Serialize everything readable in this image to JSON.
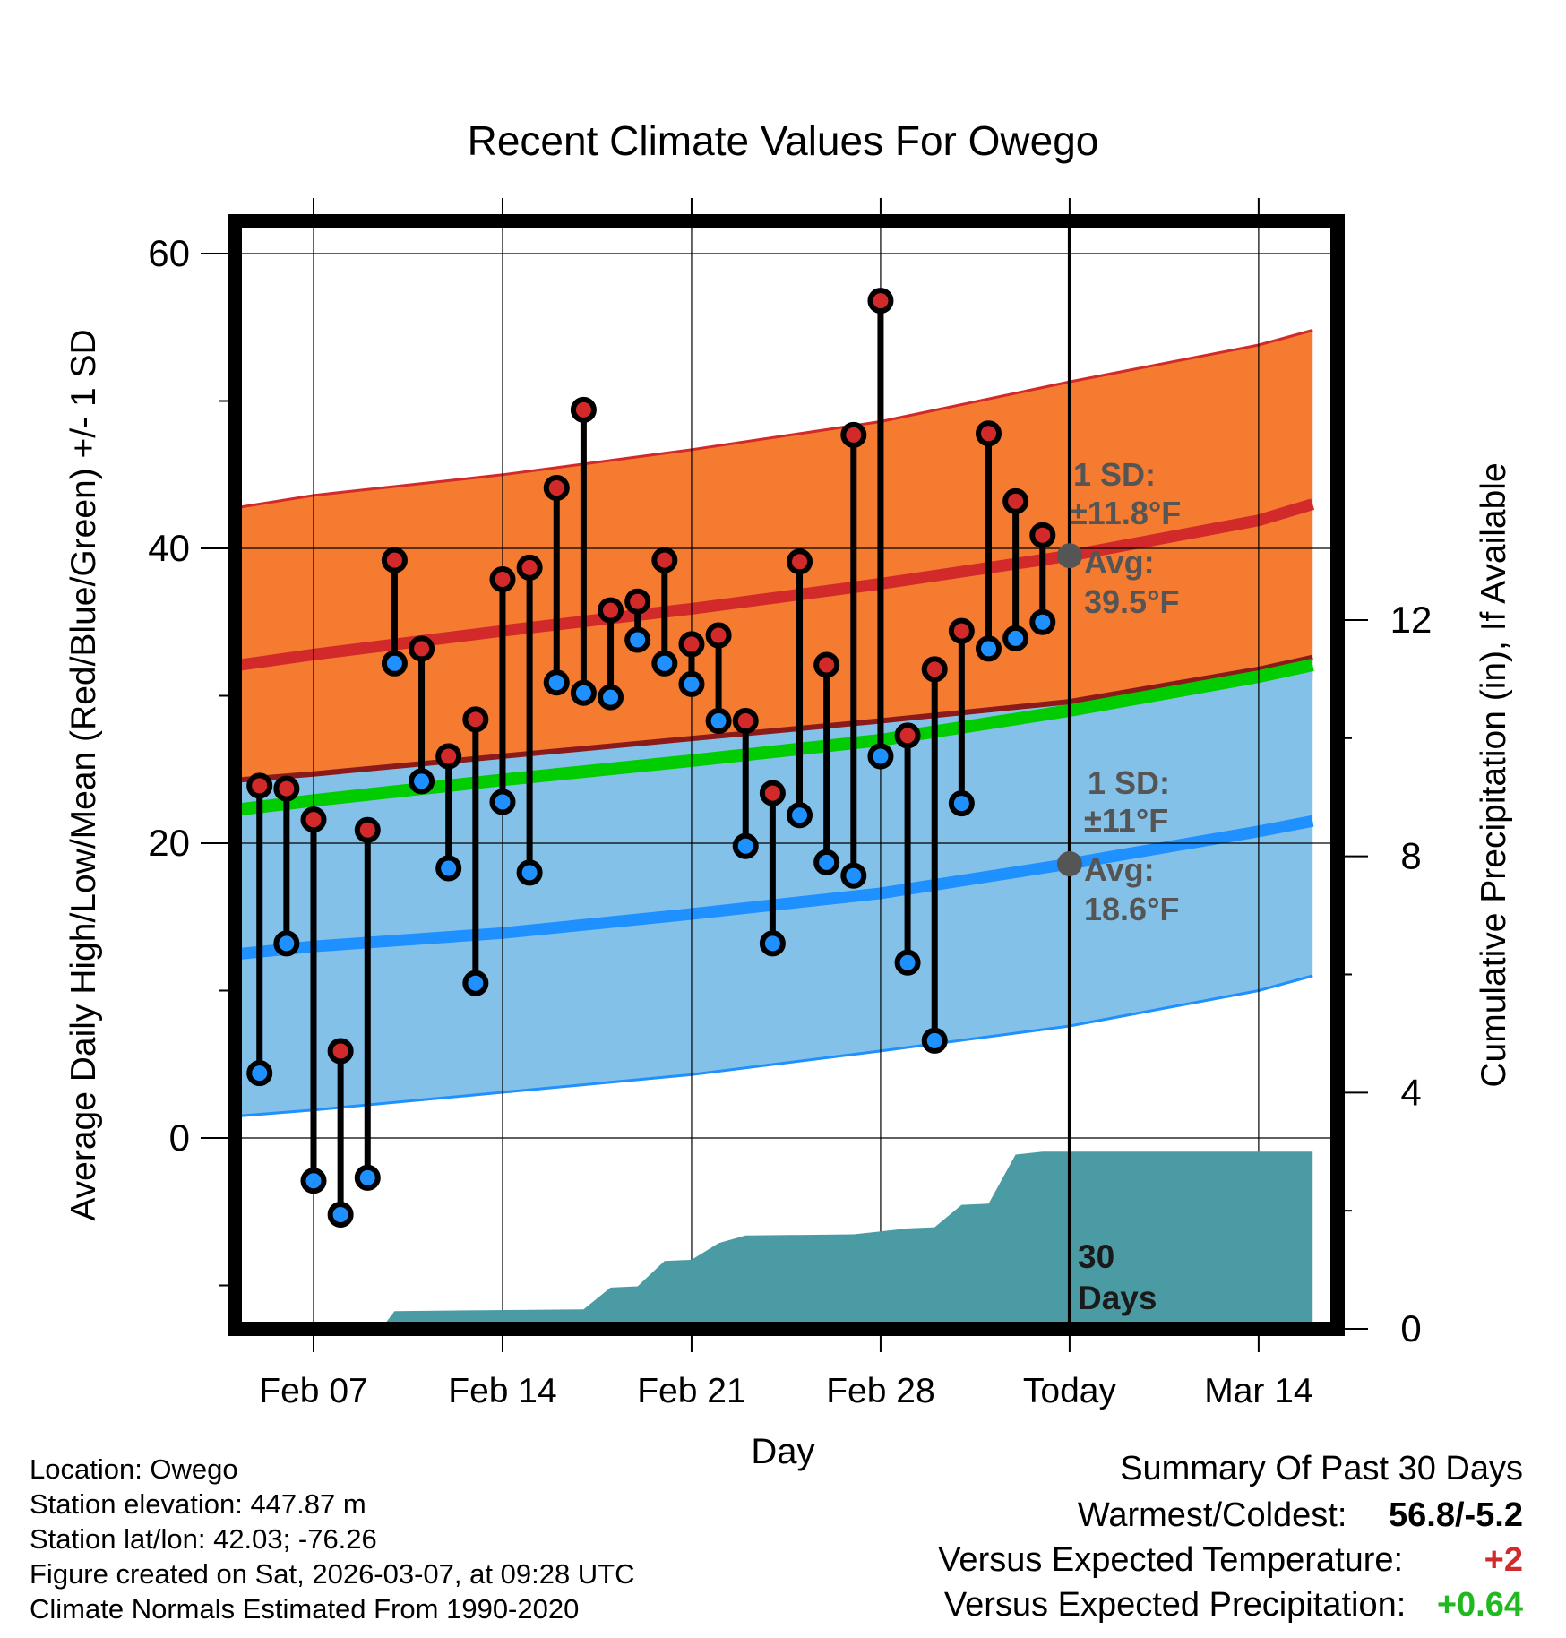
{
  "chart_data": {
    "type": "range-bar",
    "title": "Recent Climate Values For Owego",
    "xlabel": "Day",
    "ylabel": "Average Daily High/Low/Mean (Red/Blue/Green) +/- 1 SD",
    "ylabel_right": "Cumulative Precipitation (in), If Available",
    "x_range": [
      -3.3,
      37.3
    ],
    "ylim": [
      -12.5,
      62.5
    ],
    "y2lim": [
      0,
      18.75
    ],
    "x_ticks": [
      {
        "x": 0,
        "label": "Feb 07"
      },
      {
        "x": 7,
        "label": "Feb 14"
      },
      {
        "x": 14,
        "label": "Feb 21"
      },
      {
        "x": 21,
        "label": "Feb 28"
      },
      {
        "x": 28,
        "label": "Today"
      },
      {
        "x": 35,
        "label": "Mar 14"
      }
    ],
    "y_ticks": [
      0,
      20,
      40,
      60
    ],
    "y2_ticks": [
      0,
      4,
      8,
      12
    ],
    "today_x": 28,
    "normal_high": {
      "x": [
        -2.7,
        0,
        7,
        14,
        21,
        28,
        35,
        37
      ],
      "mean": [
        32.1,
        32.8,
        34.4,
        35.9,
        37.6,
        39.5,
        41.9,
        43.0
      ],
      "upper": [
        42.8,
        43.6,
        45.0,
        46.7,
        48.6,
        51.3,
        53.8,
        54.8
      ],
      "lower": [
        21.5,
        22.0,
        23.8,
        25.1,
        26.6,
        27.7,
        30.0,
        31.2
      ]
    },
    "normal_low": {
      "x": [
        -2.7,
        0,
        7,
        14,
        21,
        28,
        35,
        37
      ],
      "mean": [
        12.5,
        13.0,
        13.9,
        15.2,
        16.6,
        18.6,
        20.8,
        21.5
      ],
      "upper": [
        24.3,
        24.7,
        25.9,
        27.1,
        28.3,
        29.6,
        31.8,
        32.6
      ],
      "lower": [
        1.5,
        1.9,
        3.1,
        4.3,
        5.9,
        7.6,
        10.0,
        11.0
      ]
    },
    "normal_mean": {
      "x": [
        -2.7,
        0,
        7,
        14,
        21,
        28,
        35,
        37
      ],
      "values": [
        22.3,
        22.9,
        24.3,
        25.6,
        27.0,
        29.0,
        31.3,
        32.1
      ]
    },
    "days": [
      {
        "x": -2,
        "high": 23.9,
        "low": 4.4
      },
      {
        "x": -1,
        "high": 23.7,
        "low": 13.2
      },
      {
        "x": 0,
        "high": 21.6,
        "low": -2.9
      },
      {
        "x": 1,
        "high": 5.9,
        "low": -5.2
      },
      {
        "x": 2,
        "high": 20.9,
        "low": -2.7
      },
      {
        "x": 3,
        "high": 39.2,
        "low": 32.2
      },
      {
        "x": 4,
        "high": 33.2,
        "low": 24.2
      },
      {
        "x": 5,
        "high": 25.9,
        "low": 18.3
      },
      {
        "x": 6,
        "high": 28.4,
        "low": 10.5
      },
      {
        "x": 7,
        "high": 37.9,
        "low": 22.8
      },
      {
        "x": 8,
        "high": 38.7,
        "low": 18.0
      },
      {
        "x": 9,
        "high": 44.1,
        "low": 30.9
      },
      {
        "x": 10,
        "high": 49.4,
        "low": 30.2
      },
      {
        "x": 11,
        "high": 35.8,
        "low": 29.9
      },
      {
        "x": 12,
        "high": 36.4,
        "low": 33.8
      },
      {
        "x": 13,
        "high": 39.2,
        "low": 32.2
      },
      {
        "x": 14,
        "high": 33.5,
        "low": 30.8
      },
      {
        "x": 15,
        "high": 34.1,
        "low": 28.3
      },
      {
        "x": 16,
        "high": 28.3,
        "low": 19.8
      },
      {
        "x": 17,
        "high": 23.4,
        "low": 13.2
      },
      {
        "x": 18,
        "high": 39.1,
        "low": 21.9
      },
      {
        "x": 19,
        "high": 32.1,
        "low": 18.7
      },
      {
        "x": 20,
        "high": 47.7,
        "low": 17.8
      },
      {
        "x": 21,
        "high": 56.8,
        "low": 25.9
      },
      {
        "x": 22,
        "high": 27.3,
        "low": 11.9
      },
      {
        "x": 23,
        "high": 31.8,
        "low": 6.6
      },
      {
        "x": 24,
        "high": 34.4,
        "low": 22.7
      },
      {
        "x": 25,
        "high": 47.8,
        "low": 33.2
      },
      {
        "x": 26,
        "high": 43.2,
        "low": 33.9
      },
      {
        "x": 27,
        "high": 40.9,
        "low": 35.0
      }
    ],
    "precip": {
      "x": [
        -2.7,
        2.5,
        3.0,
        10.0,
        11.0,
        12.0,
        13.0,
        14.0,
        15.0,
        16.0,
        20.0,
        21.0,
        22.0,
        23.0,
        24.0,
        25.0,
        26.0,
        27.0,
        37.0
      ],
      "values": [
        0,
        0,
        0.3,
        0.33,
        0.7,
        0.72,
        1.15,
        1.17,
        1.45,
        1.58,
        1.6,
        1.65,
        1.7,
        1.72,
        2.1,
        2.12,
        2.95,
        3.0,
        3.0
      ]
    },
    "today_marker_high": 39.5,
    "today_marker_low": 18.6
  },
  "annotations": {
    "high_sd_label": "1 SD:",
    "high_sd_value": "±11.8°F",
    "high_avg_label": "Avg:",
    "high_avg_value": "39.5°F",
    "low_sd_label": "1 SD:",
    "low_sd_value": "±11°F",
    "low_avg_label": "Avg:",
    "low_avg_value": "18.6°F",
    "days_count": "30",
    "days_word": "Days"
  },
  "colors": {
    "high_band": "#f47b30",
    "high_line": "#d22a2a",
    "low_band": "#84c1e8",
    "low_line": "#1e90ff",
    "mean_line": "#00cc00",
    "mean_dark": "#8b1a1a",
    "precip": "#4a9ba3",
    "annot": "#555555",
    "high_dot": "#d22a2a",
    "low_dot": "#1e90ff",
    "warm": "#d22a2a",
    "precip_pos": "#22b822"
  },
  "meta": {
    "location": "Location: Owego",
    "elevation": "Station elevation: 447.87 m",
    "latlon": "Station lat/lon: 42.03; -76.26",
    "created": "Figure created on Sat, 2026-03-07, at 09:28 UTC",
    "normals": "Climate Normals Estimated From 1990-2020"
  },
  "summary": {
    "title": "Summary Of Past 30 Days",
    "warm_cold_label": "Warmest/Coldest:",
    "warm_cold_value": "56.8/-5.2",
    "temp_label": "Versus Expected Temperature:",
    "temp_value": "+2",
    "precip_label": "Versus Expected Precipitation:",
    "precip_value": "+0.64"
  }
}
